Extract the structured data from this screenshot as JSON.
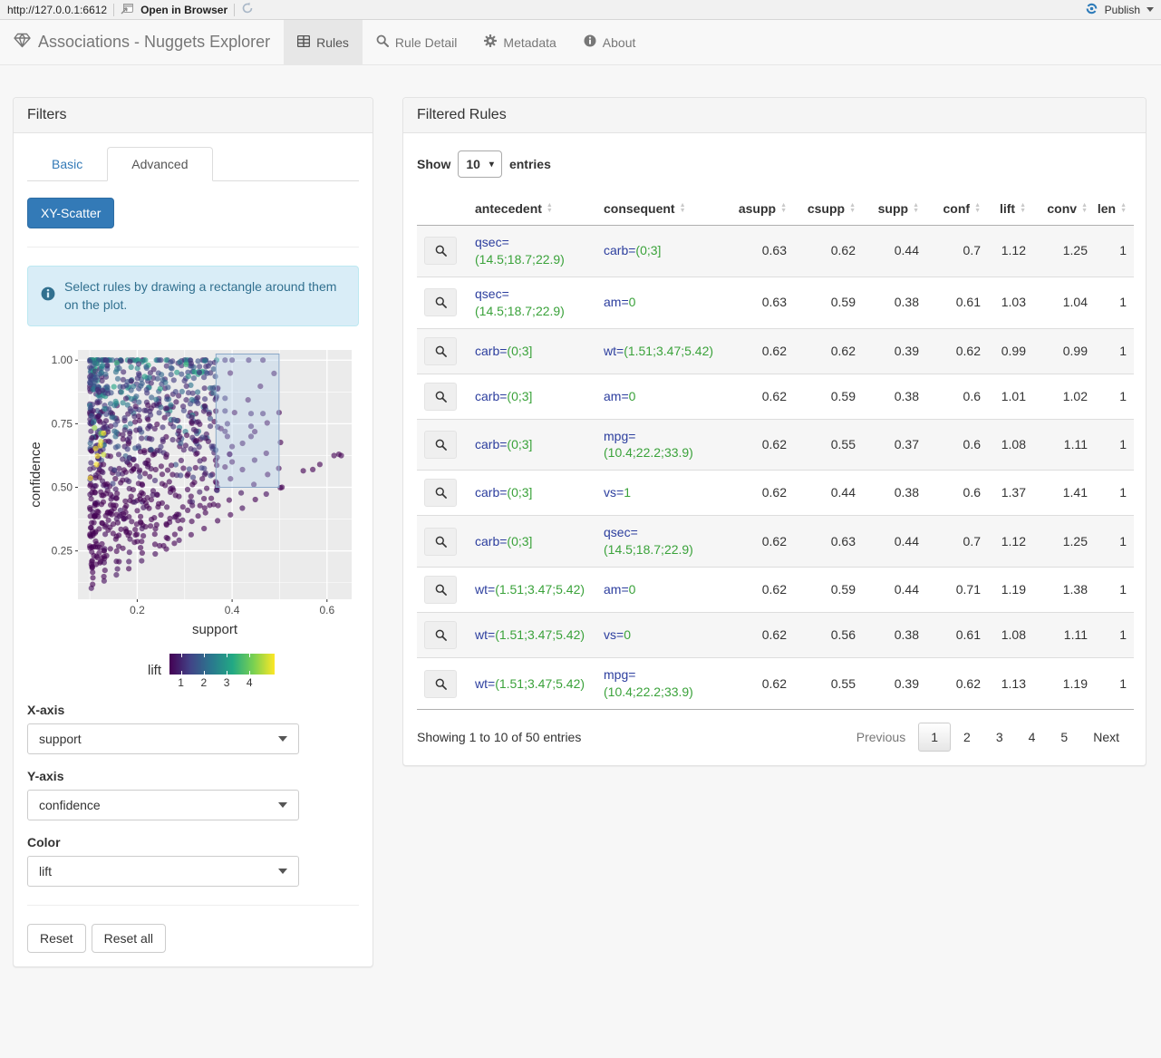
{
  "browser_bar": {
    "url": "http://127.0.0.1:6612",
    "open_in_browser": "Open in Browser",
    "publish_label": "Publish"
  },
  "navbar": {
    "brand": "Associations - Nuggets Explorer",
    "tabs": [
      {
        "label": "Rules",
        "icon": "table-icon",
        "active": true
      },
      {
        "label": "Rule Detail",
        "icon": "search-icon",
        "active": false
      },
      {
        "label": "Metadata",
        "icon": "gear-icon",
        "active": false
      },
      {
        "label": "About",
        "icon": "info-circle-icon",
        "active": false
      }
    ]
  },
  "filters": {
    "title": "Filters",
    "tabs": [
      {
        "label": "Basic",
        "active": false
      },
      {
        "label": "Advanced",
        "active": true
      }
    ],
    "scatter_button": "XY-Scatter",
    "info_text": "Select rules by drawing a rectangle around them on the plot.",
    "x_axis_label": "X-axis",
    "x_axis_value": "support",
    "y_axis_label": "Y-axis",
    "y_axis_value": "confidence",
    "color_label": "Color",
    "color_value": "lift",
    "reset_label": "Reset",
    "reset_all_label": "Reset all"
  },
  "chart_data": {
    "type": "scatter",
    "xlabel": "support",
    "ylabel": "confidence",
    "xlim": [
      0.075,
      0.652
    ],
    "ylim": [
      0.06,
      1.04
    ],
    "x_ticks": [
      0.2,
      0.4,
      0.6
    ],
    "x_tick_labels": [
      "0.2",
      "0.4",
      "0.6"
    ],
    "y_ticks": [
      0.25,
      0.5,
      0.75,
      1.0
    ],
    "y_tick_labels": [
      "0.25",
      "0.50",
      "0.75",
      "1.00"
    ],
    "x_minor": [
      0.1,
      0.3,
      0.5
    ],
    "y_minor": [
      0.125,
      0.375,
      0.625,
      0.875
    ],
    "grid": true,
    "panel_bg": "#ebebeb",
    "gridline_color": "#ffffff",
    "color_scale": {
      "name": "viridis",
      "stops": [
        "#440154",
        "#414487",
        "#2a788e",
        "#22a884",
        "#7ad151",
        "#fde725"
      ]
    },
    "legend": {
      "label": "lift",
      "ticks": [
        1,
        2,
        3,
        4
      ],
      "domain": [
        0.5,
        5.1
      ]
    },
    "selection_rect": {
      "x0": 0.366,
      "x1": 0.499,
      "y0": 0.5,
      "y1": 1.024
    },
    "generated_cloud": {
      "note": "dense unreadable cloud approximated generatively",
      "seed": 42,
      "n_cloud": 780,
      "n_top_row": 48,
      "s_min": 0.1,
      "s_span": 0.27,
      "point_radius": 3.1,
      "opacity": 0.62,
      "chain_slopes": [
        1.0,
        1.15,
        1.35,
        1.6,
        1.95,
        2.4
      ]
    },
    "highlight_points": [
      [
        0.385,
        1.0,
        1.3
      ],
      [
        0.4,
        1.0,
        1.25
      ],
      [
        0.435,
        1.0,
        1.2
      ],
      [
        0.465,
        1.0,
        1.15
      ],
      [
        0.385,
        0.85,
        1.4
      ],
      [
        0.385,
        0.8,
        1.35
      ],
      [
        0.39,
        0.75,
        1.3
      ],
      [
        0.385,
        0.72,
        1.25
      ],
      [
        0.39,
        0.7,
        1.2
      ],
      [
        0.4,
        0.66,
        1.15
      ],
      [
        0.395,
        0.63,
        1.1
      ],
      [
        0.44,
        0.79,
        1.25
      ],
      [
        0.465,
        0.79,
        1.2
      ],
      [
        0.44,
        0.74,
        1.2
      ],
      [
        0.44,
        0.7,
        1.15
      ],
      [
        0.505,
        0.5,
        1.0
      ],
      [
        0.4,
        0.6,
        1.05
      ],
      [
        0.385,
        0.58,
        1.0
      ],
      [
        0.55,
        0.565,
        0.95
      ],
      [
        0.57,
        0.57,
        0.95
      ],
      [
        0.585,
        0.59,
        0.95
      ],
      [
        0.615,
        0.625,
        1.0
      ],
      [
        0.625,
        0.63,
        1.0
      ],
      [
        0.63,
        0.625,
        1.0
      ]
    ]
  },
  "table_panel": {
    "title": "Filtered Rules",
    "show_label": "Show",
    "entries_label": "entries",
    "page_length": "10",
    "columns": [
      "antecedent",
      "consequent",
      "asupp",
      "csupp",
      "supp",
      "conf",
      "lift",
      "conv",
      "len"
    ],
    "rows": [
      {
        "antecedent": {
          "name": "qsec",
          "value": "(14.5;18.7;22.9)"
        },
        "consequent": {
          "name": "carb",
          "value": "(0;3]"
        },
        "asupp": "0.63",
        "csupp": "0.62",
        "supp": "0.44",
        "conf": "0.7",
        "lift": "1.12",
        "conv": "1.25",
        "len": "1"
      },
      {
        "antecedent": {
          "name": "qsec",
          "value": "(14.5;18.7;22.9)"
        },
        "consequent": {
          "name": "am",
          "value": "0"
        },
        "asupp": "0.63",
        "csupp": "0.59",
        "supp": "0.38",
        "conf": "0.61",
        "lift": "1.03",
        "conv": "1.04",
        "len": "1"
      },
      {
        "antecedent": {
          "name": "carb",
          "value": "(0;3]"
        },
        "consequent": {
          "name": "wt",
          "value": "(1.51;3.47;5.42)"
        },
        "asupp": "0.62",
        "csupp": "0.62",
        "supp": "0.39",
        "conf": "0.62",
        "lift": "0.99",
        "conv": "0.99",
        "len": "1"
      },
      {
        "antecedent": {
          "name": "carb",
          "value": "(0;3]"
        },
        "consequent": {
          "name": "am",
          "value": "0"
        },
        "asupp": "0.62",
        "csupp": "0.59",
        "supp": "0.38",
        "conf": "0.6",
        "lift": "1.01",
        "conv": "1.02",
        "len": "1"
      },
      {
        "antecedent": {
          "name": "carb",
          "value": "(0;3]"
        },
        "consequent": {
          "name": "mpg",
          "value": "(10.4;22.2;33.9)"
        },
        "asupp": "0.62",
        "csupp": "0.55",
        "supp": "0.37",
        "conf": "0.6",
        "lift": "1.08",
        "conv": "1.11",
        "len": "1"
      },
      {
        "antecedent": {
          "name": "carb",
          "value": "(0;3]"
        },
        "consequent": {
          "name": "vs",
          "value": "1"
        },
        "asupp": "0.62",
        "csupp": "0.44",
        "supp": "0.38",
        "conf": "0.6",
        "lift": "1.37",
        "conv": "1.41",
        "len": "1"
      },
      {
        "antecedent": {
          "name": "carb",
          "value": "(0;3]"
        },
        "consequent": {
          "name": "qsec",
          "value": "(14.5;18.7;22.9)"
        },
        "asupp": "0.62",
        "csupp": "0.63",
        "supp": "0.44",
        "conf": "0.7",
        "lift": "1.12",
        "conv": "1.25",
        "len": "1"
      },
      {
        "antecedent": {
          "name": "wt",
          "value": "(1.51;3.47;5.42)"
        },
        "consequent": {
          "name": "am",
          "value": "0"
        },
        "asupp": "0.62",
        "csupp": "0.59",
        "supp": "0.44",
        "conf": "0.71",
        "lift": "1.19",
        "conv": "1.38",
        "len": "1"
      },
      {
        "antecedent": {
          "name": "wt",
          "value": "(1.51;3.47;5.42)"
        },
        "consequent": {
          "name": "vs",
          "value": "0"
        },
        "asupp": "0.62",
        "csupp": "0.56",
        "supp": "0.38",
        "conf": "0.61",
        "lift": "1.08",
        "conv": "1.11",
        "len": "1"
      },
      {
        "antecedent": {
          "name": "wt",
          "value": "(1.51;3.47;5.42)"
        },
        "consequent": {
          "name": "mpg",
          "value": "(10.4;22.2;33.9)"
        },
        "asupp": "0.62",
        "csupp": "0.55",
        "supp": "0.39",
        "conf": "0.62",
        "lift": "1.13",
        "conv": "1.19",
        "len": "1"
      }
    ],
    "summary": "Showing 1 to 10 of 50 entries",
    "pagination": {
      "previous": "Previous",
      "pages": [
        "1",
        "2",
        "3",
        "4",
        "5"
      ],
      "active": "1",
      "next": "Next"
    }
  },
  "colors": {
    "accent": "#337ab7",
    "publish_blue": "#2d7bb9",
    "attr_name_blue": "#2c3e9e",
    "attr_value_green": "#3aa23a",
    "alert_bg": "#d9edf7",
    "alert_text": "#31708f",
    "panel_heading_bg": "#f5f5f5",
    "active_tab_bg": "#e7e7e7"
  }
}
